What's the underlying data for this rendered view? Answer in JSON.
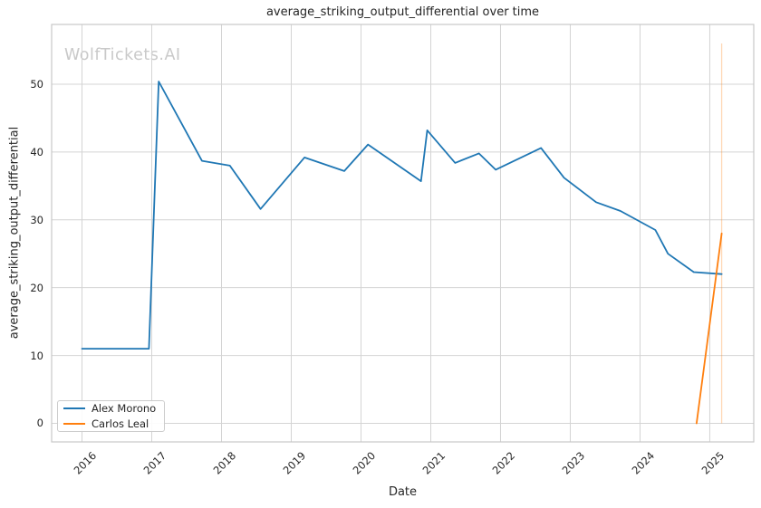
{
  "watermark": "WolfTickets.AI",
  "chart_data": {
    "type": "line",
    "title": "average_striking_output_differential over time",
    "xlabel": "Date",
    "ylabel": "average_striking_output_differential",
    "grid": true,
    "legend_position": "lower left",
    "x_ticks": [
      2016,
      2017,
      2018,
      2019,
      2020,
      2021,
      2022,
      2023,
      2024,
      2025
    ],
    "x_tick_labels": [
      "2016",
      "2017",
      "2018",
      "2019",
      "2020",
      "2021",
      "2022",
      "2023",
      "2024",
      "2025"
    ],
    "y_ticks": [
      0,
      10,
      20,
      30,
      40,
      50
    ],
    "y_tick_labels": [
      "0",
      "10",
      "20",
      "30",
      "40",
      "50"
    ],
    "xlim": [
      2015.565,
      2025.63
    ],
    "ylim": [
      -2.74,
      58.81
    ],
    "series": [
      {
        "name": "Alex Morono",
        "color": "#1f77b4",
        "x": [
          2016.0,
          2016.96,
          2017.1,
          2017.72,
          2018.12,
          2018.56,
          2019.19,
          2019.76,
          2020.1,
          2020.86,
          2020.95,
          2021.35,
          2021.69,
          2021.93,
          2022.58,
          2022.91,
          2023.37,
          2023.72,
          2024.22,
          2024.4,
          2024.77,
          2025.17
        ],
        "y": [
          11.0,
          11.0,
          50.4,
          38.7,
          38.0,
          31.6,
          39.2,
          37.2,
          41.1,
          35.7,
          43.2,
          38.4,
          39.8,
          37.4,
          40.6,
          36.2,
          32.6,
          31.3,
          28.5,
          25.0,
          22.3,
          22.0
        ]
      },
      {
        "name": "Carlos Leal",
        "color": "#ff7f0e",
        "x": [
          2024.81,
          2025.17
        ],
        "y": [
          0.0,
          28.0
        ]
      }
    ],
    "annotations": [
      {
        "type": "vline",
        "x": 2025.17,
        "y_from": 0,
        "y_to": 56,
        "color": "#ff7f0e",
        "opacity": 0.3
      }
    ],
    "colors": {
      "grid": "#d4d4d4",
      "spine": "#c7c7c7",
      "text": "#262626",
      "watermark": "#c9c9c9"
    }
  }
}
